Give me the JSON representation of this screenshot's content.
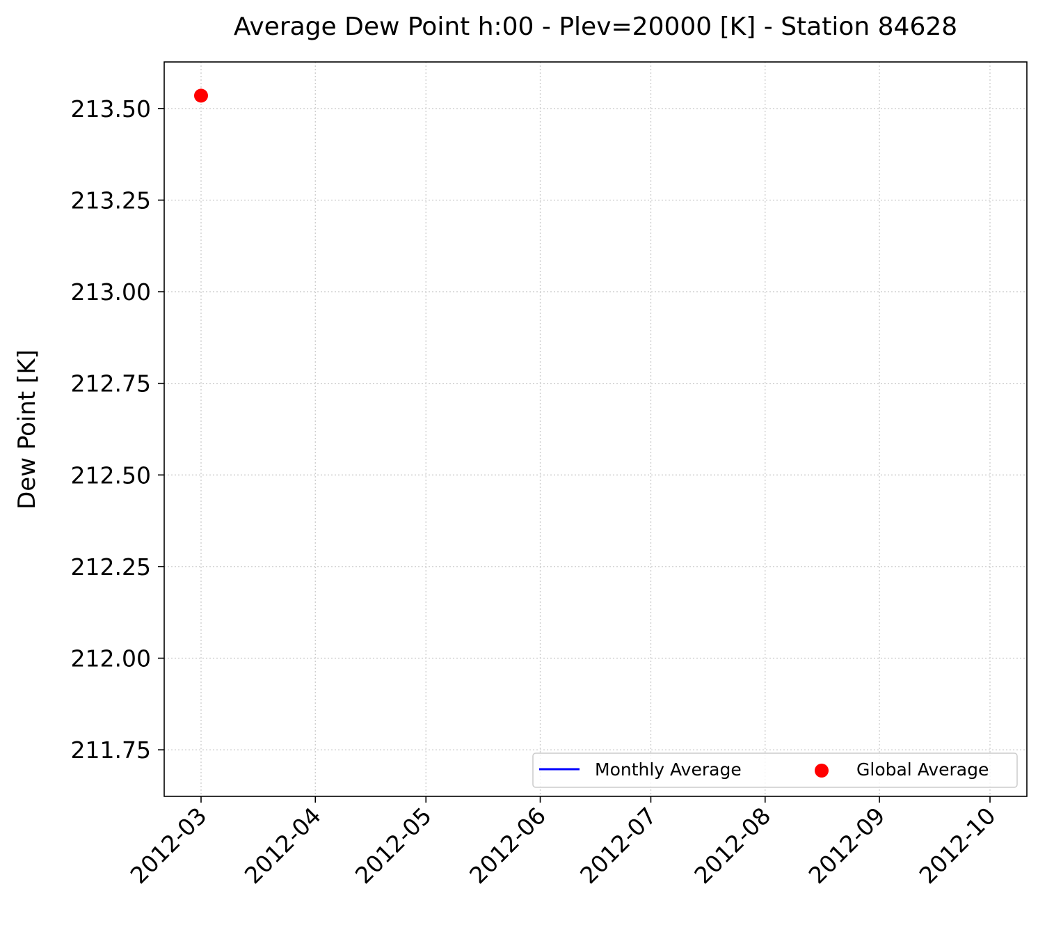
{
  "chart_data": {
    "type": "line",
    "title": "Average Dew Point h:00 - Plev=20000 [K] - Station 84628",
    "xlabel": "",
    "ylabel": "Dew Point [K]",
    "x_ticks": [
      "2012-03",
      "2012-04",
      "2012-05",
      "2012-06",
      "2012-07",
      "2012-08",
      "2012-09",
      "2012-10"
    ],
    "xlim": [
      "2012-02-20",
      "2012-10-11"
    ],
    "y_ticks": [
      "211.75",
      "212.00",
      "212.25",
      "212.50",
      "212.75",
      "213.00",
      "213.25",
      "213.50"
    ],
    "ylim": [
      211.623,
      213.627
    ],
    "grid": true,
    "legend_position": "lower-right",
    "series": [
      {
        "name": "Monthly Average",
        "kind": "line",
        "color": "#0000ff",
        "points": []
      },
      {
        "name": "Global Average",
        "kind": "scatter",
        "color": "#ff0000",
        "points": [
          {
            "x": "2012-03-01",
            "y": 213.535
          }
        ]
      }
    ]
  }
}
